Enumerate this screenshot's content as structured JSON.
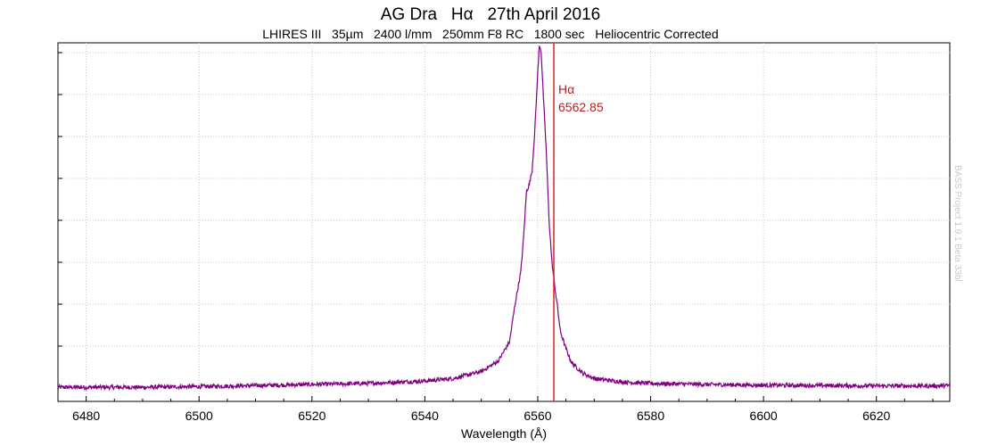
{
  "chart_data": {
    "type": "line",
    "title": "AG Dra   Hα   27th April 2016",
    "subtitle": "LHIRES III   35µm   2400 l/mm   250mm F8 RC   1800 sec   Heliocentric Corrected",
    "xlabel": "Wavelength (Å)",
    "ylabel": "",
    "xlim": [
      6475,
      6633
    ],
    "ylim": [
      0,
      1
    ],
    "x_ticks": [
      6480,
      6500,
      6520,
      6540,
      6560,
      6580,
      6600,
      6620
    ],
    "x_tick_labels": [
      "6480",
      "6500",
      "6520",
      "6540",
      "6560",
      "6580",
      "6600",
      "6620"
    ],
    "y_ticks_shown": false,
    "grid": true,
    "series_color": "#800080",
    "marker": {
      "x": 6562.85,
      "label_line1": "Hα",
      "label_line2": "6562.85",
      "color": "#dd2222"
    },
    "spectrum": {
      "x": [
        6475,
        6490,
        6500,
        6510,
        6520,
        6530,
        6540,
        6545,
        6550,
        6553,
        6555,
        6556,
        6557,
        6557.5,
        6558,
        6558.5,
        6559,
        6559.5,
        6560,
        6560.3,
        6560.6,
        6561,
        6561.5,
        6562,
        6562.5,
        6563,
        6563.5,
        6564,
        6565,
        6566,
        6568,
        6570,
        6575,
        6580,
        6590,
        6600,
        6610,
        6620,
        6630,
        6633
      ],
      "y": [
        0.02,
        0.02,
        0.022,
        0.025,
        0.028,
        0.031,
        0.038,
        0.045,
        0.065,
        0.095,
        0.15,
        0.26,
        0.35,
        0.45,
        0.58,
        0.6,
        0.64,
        0.76,
        0.92,
        1.0,
        0.98,
        0.85,
        0.7,
        0.5,
        0.38,
        0.31,
        0.25,
        0.18,
        0.13,
        0.09,
        0.06,
        0.045,
        0.035,
        0.031,
        0.028,
        0.026,
        0.025,
        0.024,
        0.024,
        0.025
      ]
    },
    "watermark": "BASS Project 1.9.1 Beta 33bl"
  }
}
